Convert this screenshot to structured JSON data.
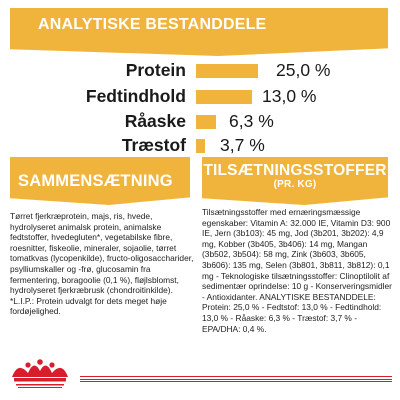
{
  "analysis": {
    "title": "ANALYTISKE BESTANDDELE",
    "items": [
      {
        "label": "Protein",
        "value": "25,0 %",
        "level": 25.0
      },
      {
        "label": "Fedtindhold",
        "value": "13,0 %",
        "level": 13.0
      },
      {
        "label": "Råaske",
        "value": "6,3 %",
        "level": 6.3
      },
      {
        "label": "Træstof",
        "value": "3,7 %",
        "level": 3.7
      }
    ]
  },
  "composition": {
    "title": "SAMMENSÆTNING",
    "text": "Tørret fjerkræprotein, majs, ris, hvede, hydrolyseret animalsk protein, animalske fedtstoffer, hvedegluten*, vegetabilske fibre, roesnitter, fiskeolie, mineraler, sojaolie, tørret tomatkvas (lycopenkilde), fructo-oligosaccharider, psylliumskaller og -frø, glucosamin fra fermentering, boragoolie (0,1 %), fløjlsblomst, hydrolyseret fjerkræbrusk (chondroitinkilde). *L.I.P.: Protein udvalgt for dets meget høje fordøjelighed."
  },
  "additives": {
    "title": "TILSÆTNINGSSTOFFER",
    "subtitle": "(pr. kg)",
    "text": "Tilsætningsstoffer med ernæringsmæssige egenskaber: Vitamin A: 32.000 IE, Vitamin D3: 900 IE, Jern (3b103): 45 mg, Jod (3b201, 3b202): 4,9 mg, Kobber (3b405, 3b406): 14 mg, Mangan (3b502, 3b504): 58 mg, Zink (3b603, 3b605, 3b606): 135 mg, Selen (3b801, 3b811, 3b812): 0,1 mg - Teknologiske tilsætningsstoffer: Clinoptilolit af sedimentær oprindelse: 10 g - Konserveringsmidler - Antioxidanter. ANALYTISKE BESTANDDELE: Protein: 25,0 % - Fedtstof: 13,0 % - Fedtindhold: 13,0 % - Råaske: 6,3 % - Træstof: 3,7 % - EPA/DHA: 0,4 %."
  },
  "brand": {
    "name": "ROYAL CANIN",
    "accent": "#d81e2c",
    "banner_color": "#f0b43c"
  }
}
